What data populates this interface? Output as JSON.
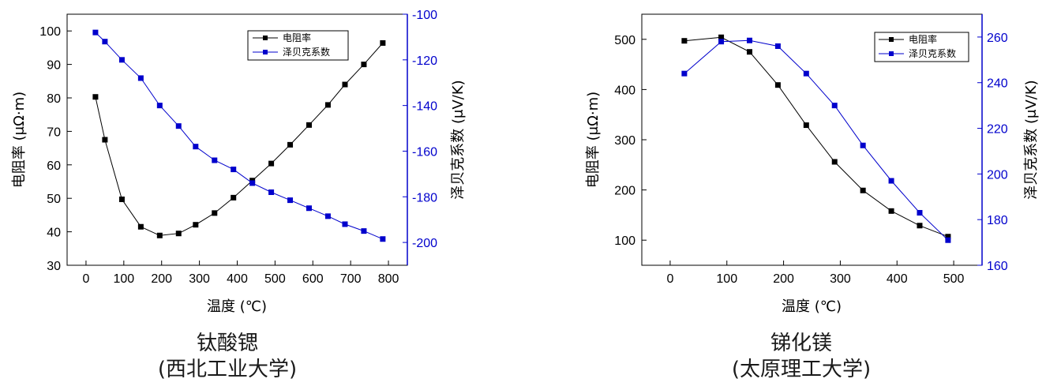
{
  "charts": [
    {
      "caption": "钛酸锶",
      "caption_sub": "(西北工业大学)",
      "xlabel": "温度 (℃)",
      "ylabel_left": "电阻率 (μΩ·m)",
      "ylabel_right": "泽贝克系数 (μV/K)",
      "legend": [
        "电阻率",
        "泽贝克系数"
      ]
    },
    {
      "caption": "锑化镁",
      "caption_sub": "(太原理工大学)",
      "xlabel": "温度 (℃)",
      "ylabel_left": "电阻率 (μΩ·m)",
      "ylabel_right": "泽贝克系数 (μV/K)",
      "legend": [
        "电阻率",
        "泽贝克系数"
      ]
    }
  ],
  "chart_data": [
    {
      "type": "line",
      "xlim": [
        -50,
        850
      ],
      "xticks": [
        0,
        100,
        200,
        300,
        400,
        500,
        600,
        700,
        800
      ],
      "ylim_left": [
        30,
        105
      ],
      "yticks_left": [
        30,
        40,
        50,
        60,
        70,
        80,
        90,
        100
      ],
      "ylim_right": [
        -210,
        -100
      ],
      "yticks_right": [
        -200,
        -180,
        -160,
        -140,
        -120,
        -100
      ],
      "legend_position": "top-right",
      "series": [
        {
          "name": "电阻率",
          "axis": "left",
          "color": "#000000",
          "x": [
            25,
            50,
            95,
            145,
            195,
            245,
            290,
            340,
            390,
            440,
            490,
            540,
            590,
            640,
            685,
            735,
            785
          ],
          "y": [
            80.3,
            67.5,
            49.7,
            41.5,
            38.9,
            39.5,
            42.1,
            45.6,
            50.2,
            55.3,
            60.4,
            66.0,
            71.9,
            77.9,
            84.0,
            90.0,
            96.4
          ]
        },
        {
          "name": "泽贝克系数",
          "axis": "right",
          "color": "#0000cc",
          "x": [
            25,
            50,
            95,
            145,
            195,
            245,
            290,
            340,
            390,
            440,
            490,
            540,
            590,
            640,
            685,
            735,
            785
          ],
          "y": [
            -108,
            -112,
            -120,
            -128,
            -140,
            -149,
            -158,
            -164,
            -168,
            -174,
            -178,
            -181.5,
            -185,
            -188.5,
            -192,
            -195,
            -198.5
          ]
        }
      ]
    },
    {
      "type": "line",
      "xlim": [
        -50,
        550
      ],
      "xticks": [
        0,
        100,
        200,
        300,
        400,
        500
      ],
      "ylim_left": [
        50,
        550
      ],
      "yticks_left": [
        100,
        200,
        300,
        400,
        500
      ],
      "ylim_right": [
        160,
        270
      ],
      "yticks_right": [
        160,
        180,
        200,
        220,
        240,
        260
      ],
      "legend_position": "top-right",
      "series": [
        {
          "name": "电阻率",
          "axis": "left",
          "color": "#000000",
          "x": [
            25,
            90,
            140,
            190,
            240,
            290,
            340,
            390,
            440,
            490
          ],
          "y": [
            497,
            504,
            475,
            409,
            329,
            256,
            199,
            158,
            129,
            107
          ]
        },
        {
          "name": "泽贝克系数",
          "axis": "right",
          "color": "#0000cc",
          "x": [
            25,
            90,
            140,
            190,
            240,
            290,
            340,
            390,
            440,
            490
          ],
          "y": [
            244,
            258,
            258.5,
            256,
            244,
            230,
            212.5,
            197,
            183,
            171
          ]
        }
      ]
    }
  ]
}
